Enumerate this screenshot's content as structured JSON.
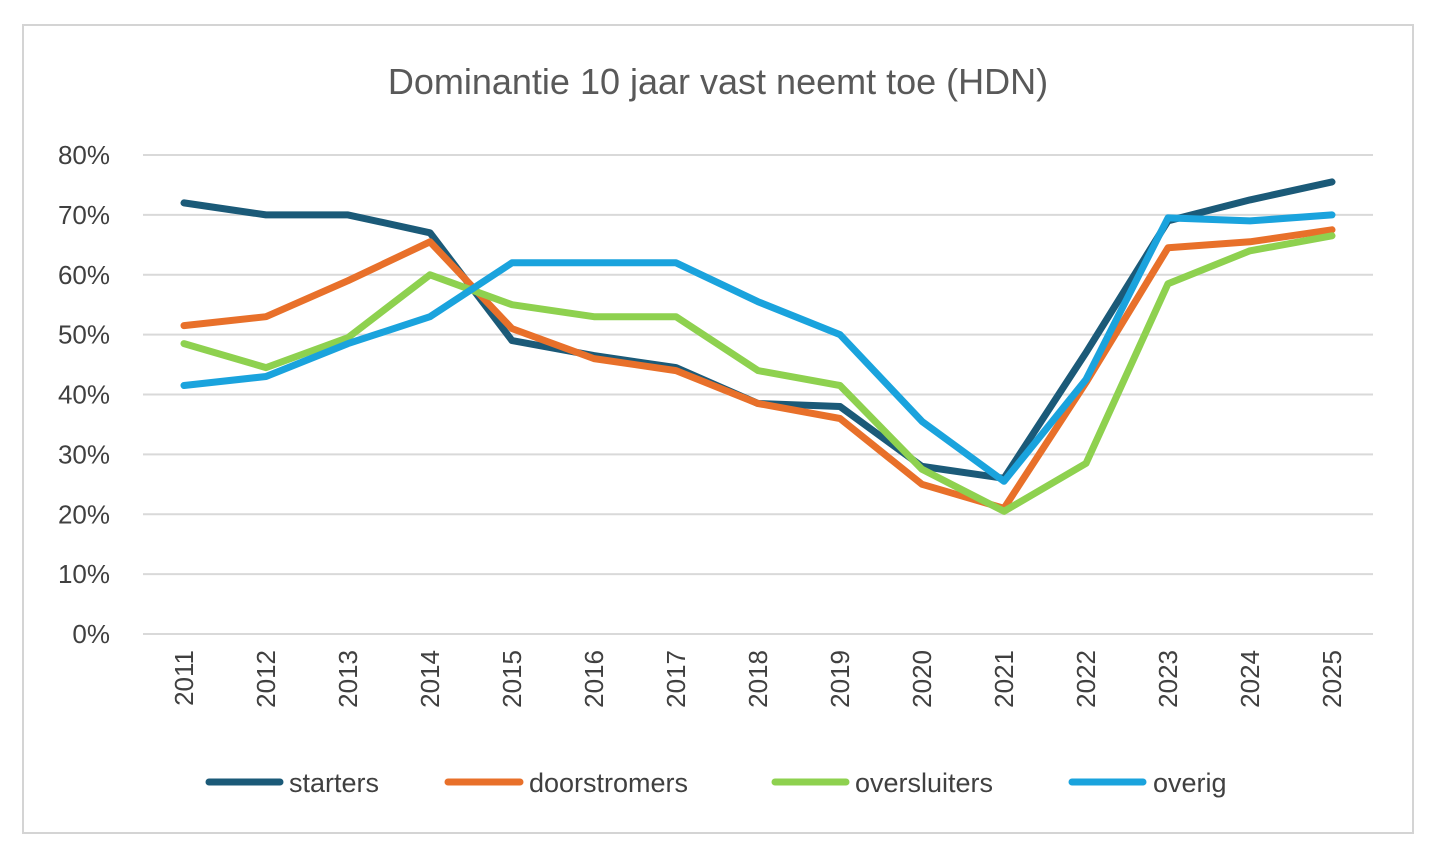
{
  "chart_data": {
    "type": "line",
    "title": "Dominantie 10 jaar vast neemt toe (HDN)",
    "xlabel": "",
    "ylabel": "",
    "categories": [
      "2011",
      "2012",
      "2013",
      "2014",
      "2015",
      "2016",
      "2017",
      "2018",
      "2019",
      "2020",
      "2021",
      "2022",
      "2023",
      "2024",
      "2025"
    ],
    "ylim": [
      0,
      0.8
    ],
    "yticks": [
      {
        "value": 0.0,
        "label": "0%"
      },
      {
        "value": 0.1,
        "label": "10%"
      },
      {
        "value": 0.2,
        "label": "20%"
      },
      {
        "value": 0.3,
        "label": "30%"
      },
      {
        "value": 0.4,
        "label": "40%"
      },
      {
        "value": 0.5,
        "label": "50%"
      },
      {
        "value": 0.6,
        "label": "60%"
      },
      {
        "value": 0.7,
        "label": "70%"
      },
      {
        "value": 0.8,
        "label": "80%"
      }
    ],
    "grid": true,
    "legend_position": "bottom",
    "series": [
      {
        "name": "starters",
        "color": "#1b5a78",
        "values": [
          0.72,
          0.7,
          0.7,
          0.67,
          0.49,
          0.465,
          0.445,
          0.385,
          0.38,
          0.28,
          0.26,
          0.47,
          0.69,
          0.725,
          0.755
        ]
      },
      {
        "name": "doorstromers",
        "color": "#e8702a",
        "values": [
          0.515,
          0.53,
          0.59,
          0.655,
          0.51,
          0.46,
          0.44,
          0.385,
          0.36,
          0.25,
          0.21,
          0.42,
          0.645,
          0.655,
          0.675
        ]
      },
      {
        "name": "oversluiters",
        "color": "#8ed14f",
        "values": [
          0.485,
          0.445,
          0.495,
          0.6,
          0.55,
          0.53,
          0.53,
          0.44,
          0.415,
          0.275,
          0.205,
          0.285,
          0.585,
          0.64,
          0.665
        ]
      },
      {
        "name": "overig",
        "color": "#1aa3dd",
        "values": [
          0.415,
          0.43,
          0.485,
          0.53,
          0.62,
          0.62,
          0.62,
          0.555,
          0.5,
          0.355,
          0.255,
          0.425,
          0.695,
          0.69,
          0.7
        ]
      }
    ]
  }
}
